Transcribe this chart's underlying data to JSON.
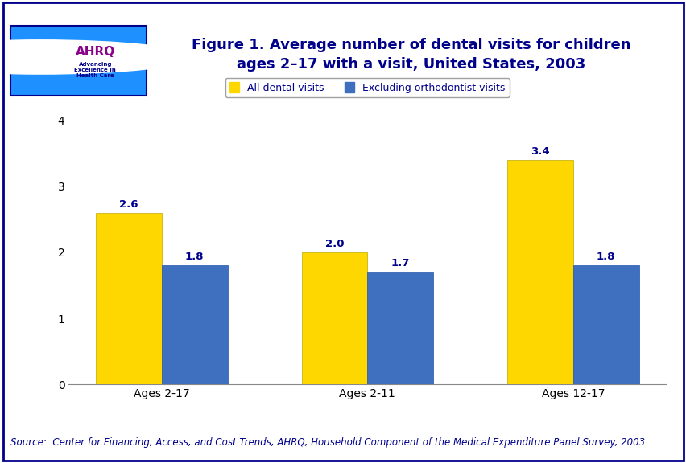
{
  "title_line1": "Figure 1. Average number of dental visits for children",
  "title_line2": "ages 2–17 with a visit, United States, 2003",
  "categories": [
    "Ages 2-17",
    "Ages 2-11",
    "Ages 12-17"
  ],
  "series1_label": "All dental visits",
  "series2_label": "Excluding orthodontist visits",
  "series1_values": [
    2.6,
    2.0,
    3.4
  ],
  "series2_values": [
    1.8,
    1.7,
    1.8
  ],
  "series1_color": "#FFD700",
  "series2_color": "#3F6FBF",
  "ylim": [
    0,
    4
  ],
  "yticks": [
    0,
    1,
    2,
    3,
    4
  ],
  "bar_width": 0.32,
  "source_text": "Source:  Center for Financing, Access, and Cost Trends, AHRQ, Household Component of the Medical Expenditure Panel Survey, 2003",
  "title_color": "#00008B",
  "label_color": "#00008B",
  "tick_label_color": "#000000",
  "axis_label_fontsize": 10,
  "title_fontsize": 13,
  "source_fontsize": 8.5,
  "legend_fontsize": 9,
  "value_label_fontsize": 9.5,
  "background_color": "#FFFFFF",
  "border_color": "#00008B",
  "stripe_color": "#00008B",
  "logo_bg_color": "#1E90FF",
  "logo_border_color": "#00008B"
}
